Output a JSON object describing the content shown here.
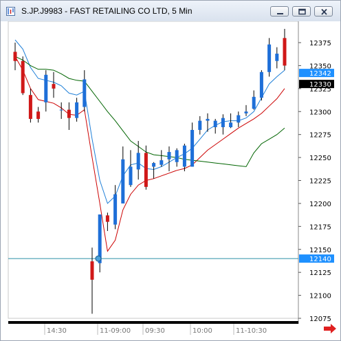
{
  "window": {
    "title": "S.JP.J9983 - FAST RETAILING CO LTD, 5 Min",
    "icon": "chart-app-icon",
    "buttons": [
      "minimize-icon",
      "restore-icon",
      "close-icon"
    ]
  },
  "chart_data": {
    "type": "candlestick",
    "yaxis": {
      "ticks": [
        12075,
        12100,
        12125,
        12150,
        12175,
        12200,
        12225,
        12250,
        12275,
        12300,
        12325,
        12350,
        12375
      ],
      "range": [
        12065,
        12392
      ]
    },
    "xaxis": {
      "tick_labels": [
        "14:30",
        "11-09:00",
        "09:30",
        "10:00",
        "11-10:30"
      ]
    },
    "price_tags": [
      {
        "value": 12342,
        "label": "12342",
        "bg": "#1e90ff",
        "fg": "#ffffff"
      },
      {
        "value": 12330,
        "label": "12330",
        "bg": "#000000",
        "fg": "#ffffff"
      },
      {
        "value": 12140,
        "label": "12140",
        "bg": "#1e90ff",
        "fg": "#ffffff"
      }
    ],
    "horizontal_line": {
      "value": 12140,
      "color": "#2a8fa8"
    },
    "candles": [
      {
        "o": 12365,
        "h": 12375,
        "l": 12345,
        "c": 12355
      },
      {
        "o": 12355,
        "h": 12360,
        "l": 12318,
        "c": 12320
      },
      {
        "o": 12318,
        "h": 12325,
        "l": 12288,
        "c": 12292
      },
      {
        "o": 12300,
        "h": 12305,
        "l": 12288,
        "c": 12292
      },
      {
        "o": 12310,
        "h": 12345,
        "l": 12300,
        "c": 12340
      },
      {
        "o": 12330,
        "h": 12343,
        "l": 12315,
        "c": 12325
      },
      {
        "o": 12302,
        "h": 12310,
        "l": 12292,
        "c": 12302
      },
      {
        "o": 12302,
        "h": 12310,
        "l": 12280,
        "c": 12293
      },
      {
        "o": 12293,
        "h": 12315,
        "l": 12289,
        "c": 12310
      },
      {
        "o": 12305,
        "h": 12345,
        "l": 12300,
        "c": 12335
      },
      {
        "o": 12137,
        "h": 12152,
        "l": 12080,
        "c": 12117
      },
      {
        "o": 12135,
        "h": 12188,
        "l": 12125,
        "c": 12188
      },
      {
        "o": 12187,
        "h": 12190,
        "l": 12170,
        "c": 12180
      },
      {
        "o": 12177,
        "h": 12220,
        "l": 12172,
        "c": 12210
      },
      {
        "o": 12200,
        "h": 12262,
        "l": 12200,
        "c": 12248
      },
      {
        "o": 12220,
        "h": 12258,
        "l": 12218,
        "c": 12240
      },
      {
        "o": 12237,
        "h": 12268,
        "l": 12226,
        "c": 12255
      },
      {
        "o": 12255,
        "h": 12263,
        "l": 12215,
        "c": 12218
      },
      {
        "o": 12240,
        "h": 12245,
        "l": 12227,
        "c": 12244
      },
      {
        "o": 12242,
        "h": 12258,
        "l": 12240,
        "c": 12247
      },
      {
        "o": 12248,
        "h": 12262,
        "l": 12235,
        "c": 12256
      },
      {
        "o": 12245,
        "h": 12260,
        "l": 12240,
        "c": 12258
      },
      {
        "o": 12240,
        "h": 12265,
        "l": 12235,
        "c": 12263
      },
      {
        "o": 12240,
        "h": 12288,
        "l": 12240,
        "c": 12280
      },
      {
        "o": 12280,
        "h": 12295,
        "l": 12275,
        "c": 12290
      },
      {
        "o": 12290,
        "h": 12298,
        "l": 12278,
        "c": 12292
      },
      {
        "o": 12283,
        "h": 12292,
        "l": 12276,
        "c": 12290
      },
      {
        "o": 12283,
        "h": 12297,
        "l": 12275,
        "c": 12293
      },
      {
        "o": 12283,
        "h": 12298,
        "l": 12282,
        "c": 12288
      },
      {
        "o": 12288,
        "h": 12300,
        "l": 12283,
        "c": 12296
      },
      {
        "o": 12298,
        "h": 12307,
        "l": 12295,
        "c": 12300
      },
      {
        "o": 12303,
        "h": 12323,
        "l": 12302,
        "c": 12316
      },
      {
        "o": 12315,
        "h": 12345,
        "l": 12312,
        "c": 12343
      },
      {
        "o": 12343,
        "h": 12380,
        "l": 12338,
        "c": 12373
      },
      {
        "o": 12355,
        "h": 12370,
        "l": 12347,
        "c": 12363
      },
      {
        "o": 12380,
        "h": 12390,
        "l": 12345,
        "c": 12350
      }
    ],
    "series": [
      {
        "color": "#1e7fd8",
        "values": [
          12378,
          12368,
          12348,
          12336,
          12334,
          12332,
          12328,
          12320,
          12318,
          12322,
          12270,
          12225,
          12200,
          12208,
          12230,
          12242,
          12244,
          12238,
          12237,
          12240,
          12245,
          12250,
          12254,
          12260,
          12270,
          12280,
          12285,
          12289,
          12290,
          12290,
          12293,
          12300,
          12315,
          12330,
          12338,
          12345
        ]
      },
      {
        "color": "#cc0000",
        "values": [
          12360,
          12345,
          12325,
          12313,
          12311,
          12309,
          12304,
          12297,
          12296,
          12302,
          12250,
          12200,
          12148,
          12160,
          12193,
          12210,
          12220,
          12225,
          12227,
          12230,
          12233,
          12236,
          12238,
          12242,
          12250,
          12258,
          12264,
          12270,
          12276,
          12282,
          12287,
          12292,
          12298,
          12306,
          12314,
          12325
        ]
      },
      {
        "color": "#006400",
        "values": [
          12360,
          12356,
          12350,
          12346,
          12346,
          12345,
          12341,
          12336,
          12334,
          12333,
          12322,
          12311,
          12300,
          12290,
          12279,
          12268,
          12262,
          12256,
          12253,
          12252,
          12251,
          12250,
          12248,
          12247,
          12246,
          12245,
          12244,
          12243,
          12242,
          12241,
          12240,
          12255,
          12265,
          12270,
          12275,
          12282
        ]
      }
    ]
  }
}
